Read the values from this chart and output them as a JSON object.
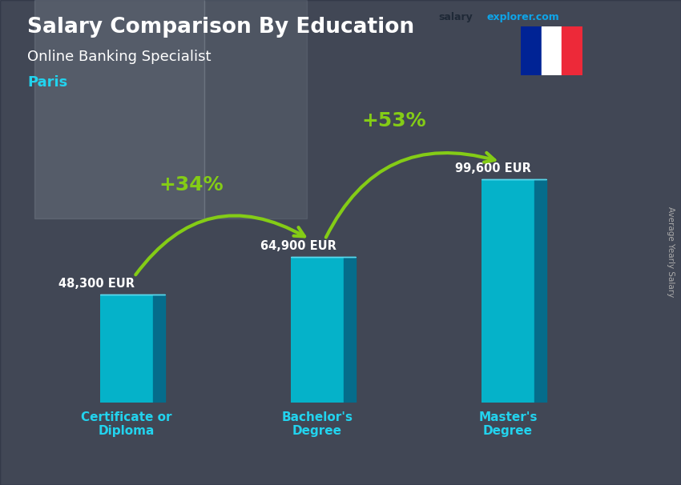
{
  "title": "Salary Comparison By Education",
  "subtitle": "Online Banking Specialist",
  "city": "Paris",
  "watermark_salary": "salary",
  "watermark_rest": "explorer.com",
  "ylabel": "Average Yearly Salary",
  "categories": [
    "Certificate or\nDiploma",
    "Bachelor's\nDegree",
    "Master's\nDegree"
  ],
  "values": [
    48300,
    64900,
    99600
  ],
  "value_labels": [
    "48,300 EUR",
    "64,900 EUR",
    "99,600 EUR"
  ],
  "pct_labels": [
    "+34%",
    "+53%"
  ],
  "bar_front_color": "#00bcd4",
  "bar_side_color": "#007090",
  "bar_top_color": "#60ddf0",
  "bg_color": "#6b7280",
  "bg_overlay": "#374151",
  "title_color": "#ffffff",
  "subtitle_color": "#ffffff",
  "city_color": "#22d3ee",
  "value_label_color": "#ffffff",
  "pct_color": "#84cc16",
  "xlabel_color": "#22d3ee",
  "arrow_color": "#84cc16",
  "bar_width": 0.28,
  "ylim": [
    0,
    130000
  ],
  "figsize": [
    8.5,
    6.06
  ],
  "dpi": 100,
  "flag_colors": [
    "#002395",
    "#ffffff",
    "#ED2939"
  ],
  "wm_bg": "#d1d5db",
  "wm_salary_color": "#1f2937",
  "wm_rest_color": "#0ea5e9"
}
